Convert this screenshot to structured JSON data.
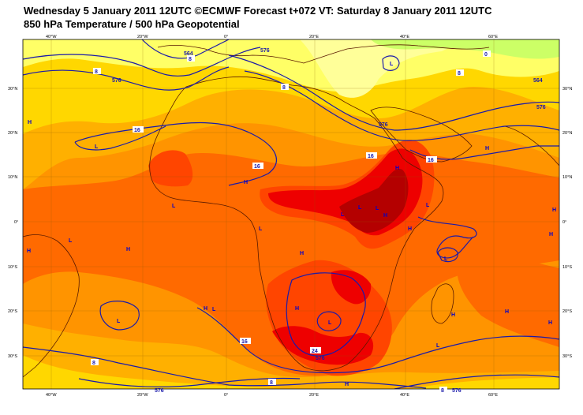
{
  "header": {
    "title": "Wednesday 5 January 2011 12UTC ©ECMWF Forecast t+072 VT: Saturday 8 January 2011 12UTC",
    "subtitle": "850 hPa Temperature / 500 hPa Geopotential"
  },
  "axes": {
    "lon_top": [
      "40°W",
      "20°W",
      "0°",
      "20°E",
      "40°E",
      "60°E"
    ],
    "lon_bottom": [
      "40°W",
      "20°W",
      "0°",
      "20°E",
      "40°E",
      "60°E"
    ],
    "lat_left": [
      "30°N",
      "20°N",
      "10°N",
      "0°",
      "10°S",
      "20°S",
      "30°S"
    ],
    "lat_right": [
      "30°N",
      "20°N",
      "10°N",
      "0°",
      "10°S",
      "20°S",
      "30°S"
    ]
  },
  "pressure_labels": [
    "H",
    "L",
    "L",
    "H",
    "L",
    "H",
    "H",
    "L",
    "H",
    "H",
    "L",
    "L",
    "H",
    "L",
    "L",
    "H",
    "H",
    "L",
    "H",
    "H",
    "L",
    "L",
    "H",
    "H",
    "H",
    "H",
    "L",
    "L",
    "H",
    "H",
    "L"
  ],
  "contour_labels": {
    "temperature": [
      "8",
      "8",
      "8",
      "8",
      "16",
      "16",
      "16",
      "16",
      "16",
      "24",
      "8",
      "8",
      "0",
      "8"
    ],
    "geopotential": [
      "576",
      "576",
      "564",
      "576",
      "576",
      "576",
      "576",
      "564",
      "576"
    ]
  },
  "colors": {
    "cold_yellow": "#ffff66",
    "pale_yellow": "#ffff99",
    "yellow_green": "#ccff66",
    "gold": "#ffd700",
    "amber": "#ffb000",
    "orange": "#ff9400",
    "dark_orange": "#ff6a00",
    "red_orange": "#ff4500",
    "red": "#ee0000",
    "dark_red": "#b40000",
    "contour_blue": "#1a1aaa",
    "coast_brown": "#5a1a00"
  }
}
